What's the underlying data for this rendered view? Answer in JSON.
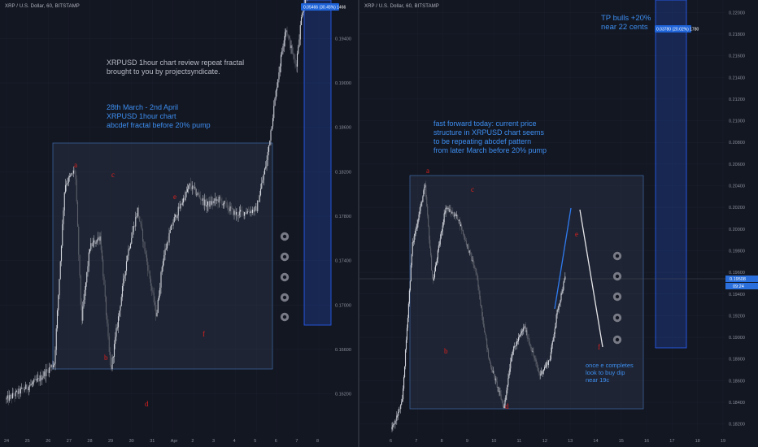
{
  "left": {
    "header": "XRP / U.S. Dollar, 60, BITSTAMP",
    "note_gray": "XRPUSD 1hour chart review repeat fractal\nbrought to you by projectsyndicate.",
    "note_blue": "28th March - 2nd April\nXRPUSD 1hour chart\nabcdef fractal before 20% pump",
    "measure_label": "0.05466 (30.45%) 1466",
    "price_ticks": [
      "0.19400",
      "0.19000",
      "0.18600",
      "0.18200",
      "0.17800",
      "0.17400",
      "0.17000",
      "0.16600",
      "0.16200"
    ],
    "date_ticks": [
      "24",
      "25",
      "26",
      "27",
      "28",
      "29",
      "30",
      "31",
      "Apr",
      "2",
      "3",
      "4",
      "5",
      "6",
      "7",
      "8"
    ],
    "labels": [
      "a",
      "b",
      "c",
      "d",
      "e",
      "f"
    ]
  },
  "right": {
    "header": "XRP / U.S. Dollar, 60, BITSTAMP",
    "note_top": "TP bulls +20%\nnear 22 cents",
    "note_mid": "fast forward today: current price\nstructure in XRPUSD chart seems\nto be repeating abcdef pattern\nfrom later March before 20% pump",
    "note_bottom": "once e completes\nlook to buy dip\nnear 19c",
    "measure_label": "0.03780 (20.02%) 1780",
    "price_ticks": [
      "0.22000",
      "0.21800",
      "0.21600",
      "0.21400",
      "0.21200",
      "0.21000",
      "0.20800",
      "0.20600",
      "0.20400",
      "0.20200",
      "0.20000",
      "0.19800",
      "0.19600",
      "0.19400",
      "0.19200",
      "0.19000",
      "0.18800",
      "0.18600",
      "0.18400",
      "0.18200"
    ],
    "current_price": "0.19508",
    "current_time": "09:24",
    "date_ticks": [
      "6",
      "7",
      "8",
      "9",
      "10",
      "11",
      "12",
      "13",
      "14",
      "15",
      "16",
      "17",
      "18",
      "19"
    ],
    "labels": [
      "a",
      "b",
      "c",
      "d",
      "e",
      "f"
    ]
  },
  "chart_data": [
    {
      "type": "candlestick",
      "title": "XRP / U.S. Dollar, 60, BITSTAMP",
      "x_range": [
        "24",
        "8"
      ],
      "ylim": [
        0.16,
        0.196
      ],
      "waypoints_x": [
        0,
        1.5,
        2.3,
        2.8,
        3.3,
        3.6,
        4.0,
        4.5,
        5.0,
        5.8,
        6.3,
        7.2,
        7.5,
        7.8,
        8.0,
        8.8,
        9.6,
        10.2,
        11.0,
        12.0,
        12.5,
        13.0,
        13.4,
        13.9,
        14.2,
        14.6
      ],
      "waypoints_y": [
        0.1615,
        0.1632,
        0.1648,
        0.1808,
        0.1822,
        0.1685,
        0.1752,
        0.1762,
        0.164,
        0.1745,
        0.1786,
        0.169,
        0.174,
        0.1762,
        0.1775,
        0.1808,
        0.179,
        0.1795,
        0.1782,
        0.1786,
        0.183,
        0.19,
        0.195,
        0.1915,
        0.1965,
        0.199
      ],
      "labels": {
        "a": 0.182,
        "b": 0.1655,
        "c": 0.181,
        "d": 0.163,
        "e": 0.1775,
        "f": 0.169
      }
    },
    {
      "type": "candlestick",
      "title": "XRP / U.S. Dollar, 60, BITSTAMP",
      "x_range": [
        "6",
        "19"
      ],
      "ylim": [
        0.181,
        0.221
      ],
      "waypoints_x": [
        6.0,
        6.4,
        6.8,
        7.3,
        7.6,
        8.1,
        8.6,
        9.3,
        9.8,
        10.4,
        10.7,
        11.2,
        11.8,
        12.2,
        12.5,
        12.8
      ],
      "waypoints_y": [
        0.1815,
        0.184,
        0.1985,
        0.204,
        0.195,
        0.202,
        0.201,
        0.196,
        0.188,
        0.1835,
        0.1885,
        0.191,
        0.1865,
        0.188,
        0.1925,
        0.1955
      ],
      "current_price": 0.19508,
      "labels": {
        "a": 0.205,
        "b": 0.188,
        "c": 0.204,
        "d": 0.1845,
        "e": 0.1985,
        "f": 0.1885
      }
    }
  ]
}
